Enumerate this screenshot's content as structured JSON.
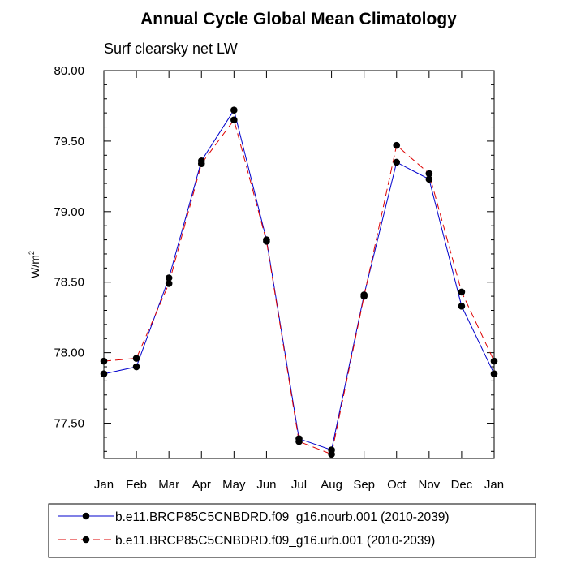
{
  "chart_data": {
    "type": "line",
    "title": "Annual Cycle Global Mean Climatology",
    "subtitle": "Surf clearsky net LW",
    "xlabel": "",
    "ylabel_base": "W/m",
    "ylabel_sup": "2",
    "categories": [
      "Jan",
      "Feb",
      "Mar",
      "Apr",
      "May",
      "Jun",
      "Jul",
      "Aug",
      "Sep",
      "Oct",
      "Nov",
      "Dec",
      "Jan"
    ],
    "ylim": [
      77.25,
      80.0
    ],
    "yticks": [
      "77.50",
      "78.00",
      "78.50",
      "79.00",
      "79.50",
      "80.00"
    ],
    "grid": false,
    "legend_position": "bottom",
    "series": [
      {
        "name": "b.e11.BRCP85C5CNBDRD.f09_g16.nourb.001 (2010-2039)",
        "color": "#0000cc",
        "dash": "solid",
        "values": [
          77.85,
          77.9,
          78.53,
          79.36,
          79.72,
          78.8,
          77.39,
          77.31,
          78.41,
          79.35,
          79.23,
          78.33,
          77.85
        ]
      },
      {
        "name": "b.e11.BRCP85C5CNBDRD.f09_g16.urb.001 (2010-2039)",
        "color": "#dd0000",
        "dash": "dashed",
        "values": [
          77.94,
          77.96,
          78.49,
          79.34,
          79.65,
          78.79,
          77.37,
          77.28,
          78.4,
          79.47,
          79.27,
          78.43,
          77.94
        ]
      }
    ]
  }
}
